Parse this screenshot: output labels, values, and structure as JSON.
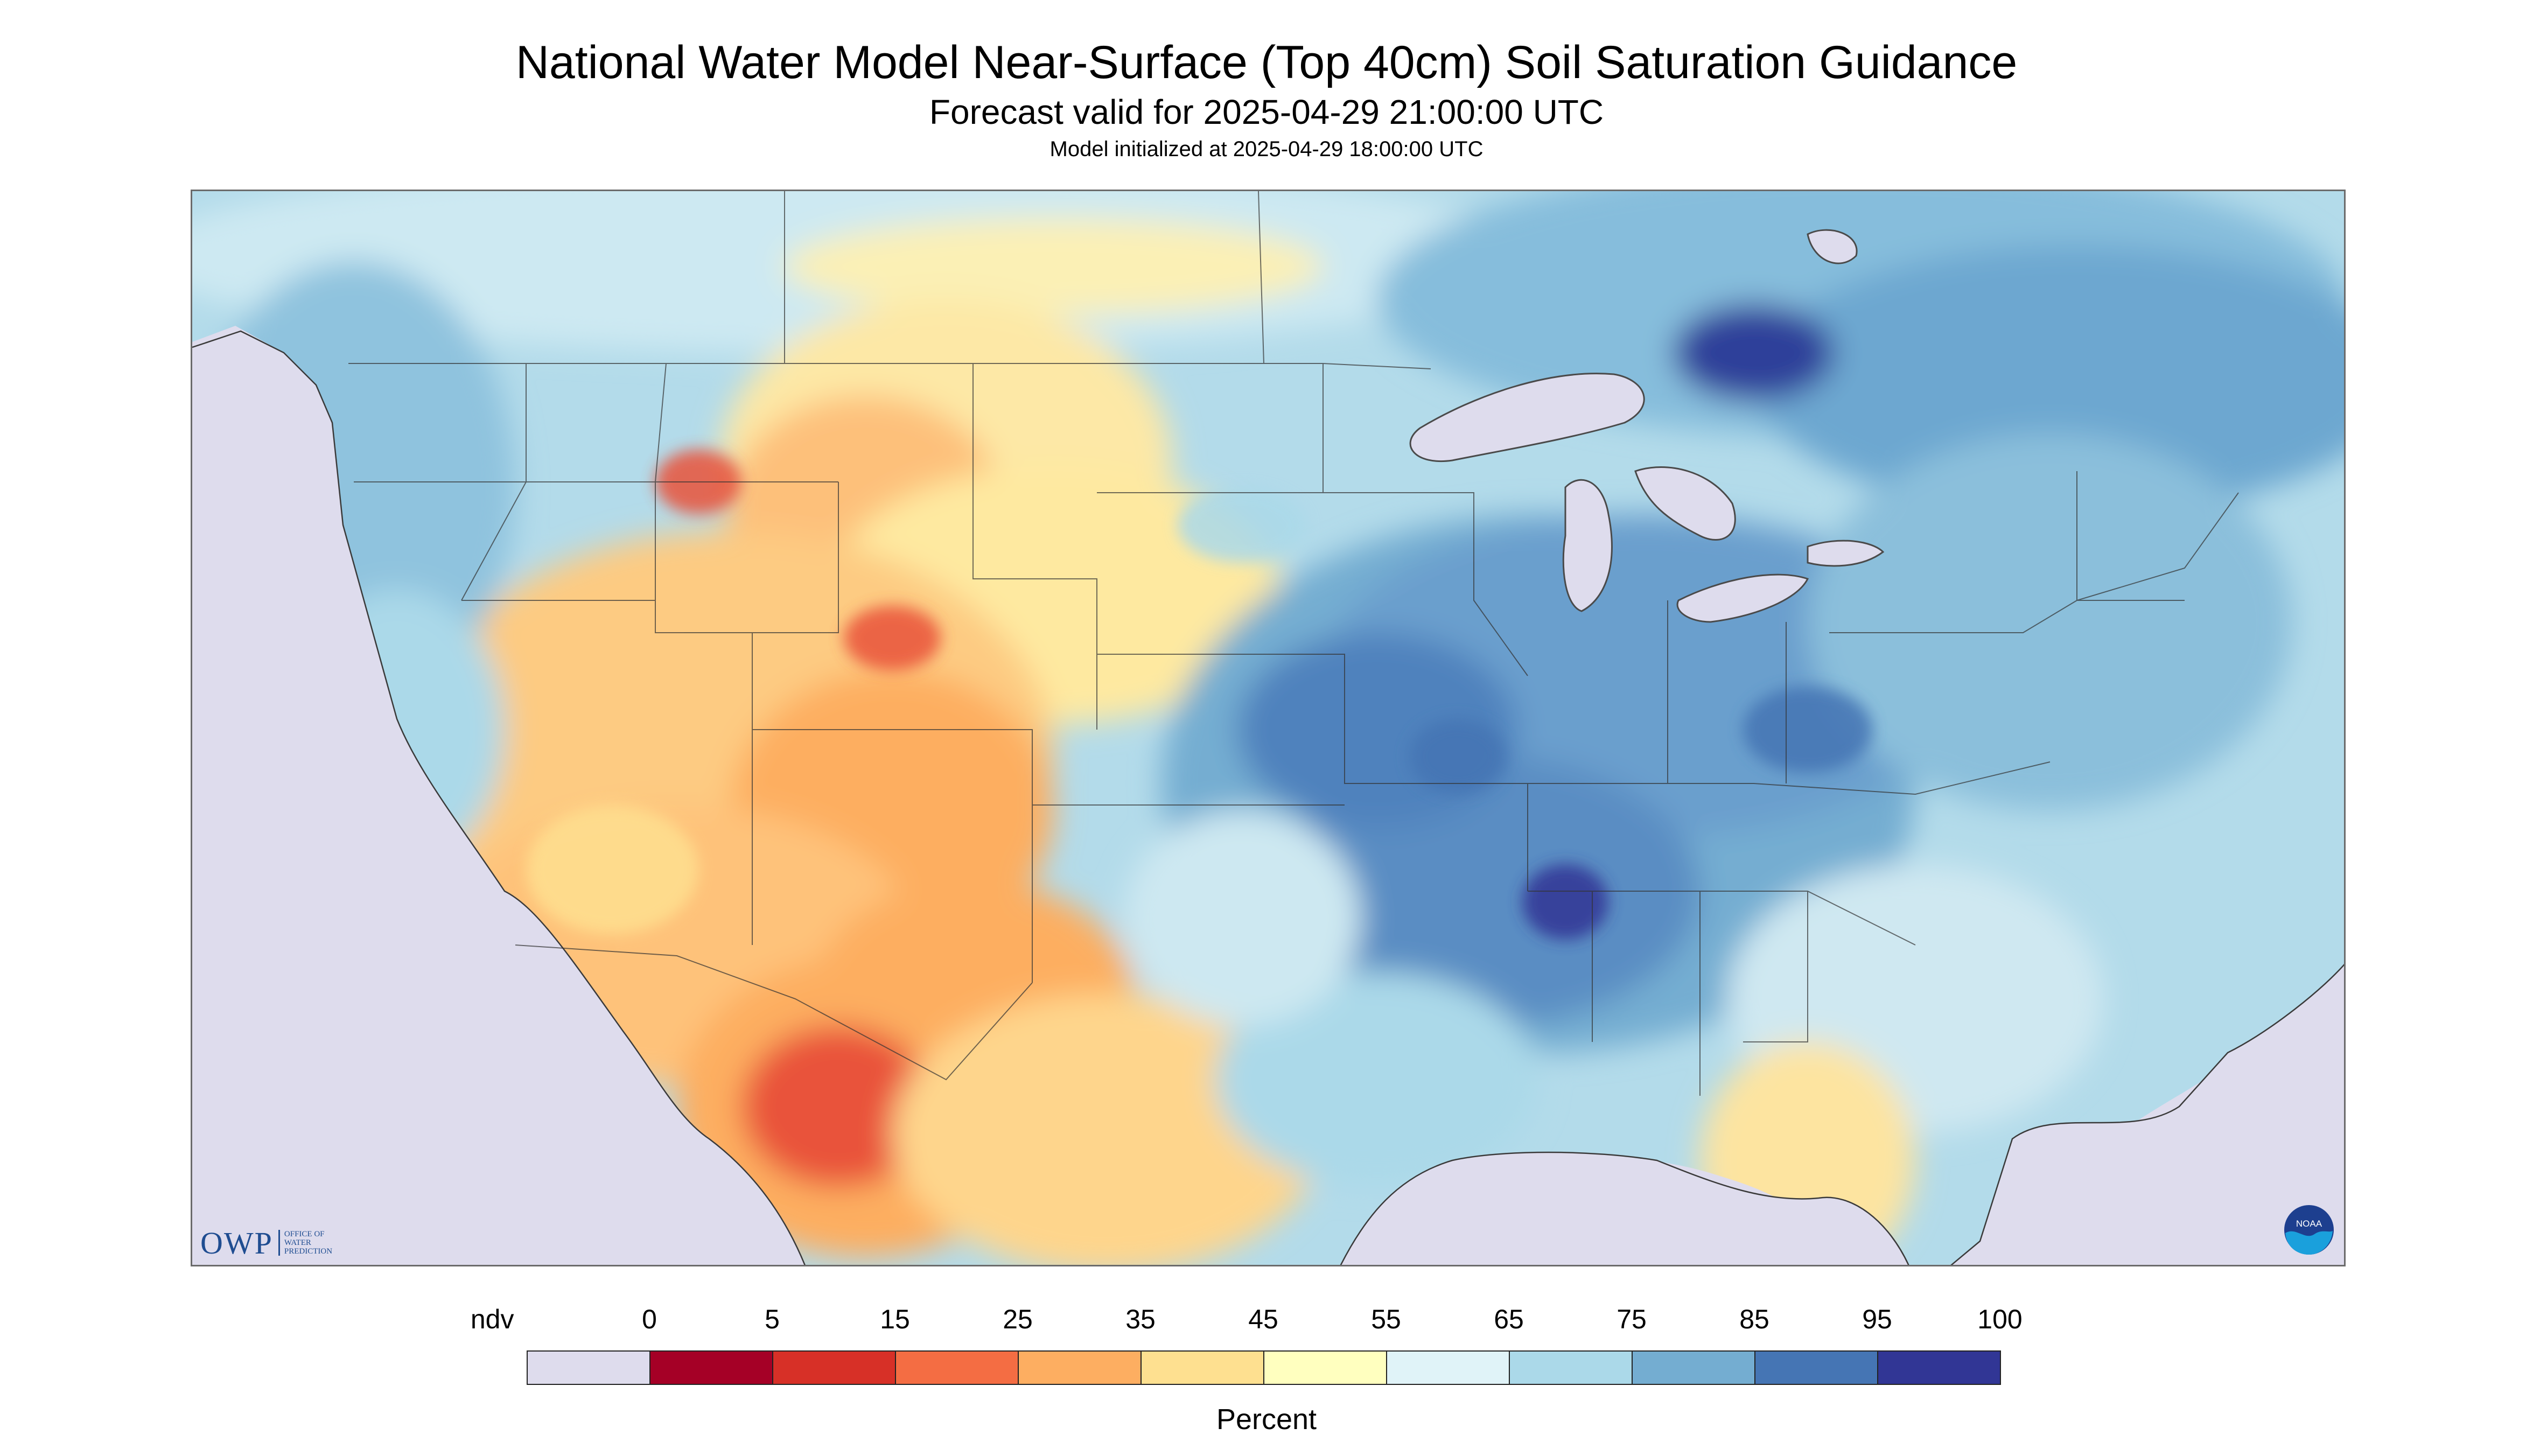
{
  "header": {
    "title": "National Water Model Near-Surface (Top 40cm) Soil Saturation Guidance",
    "subtitle": "Forecast valid for 2025-04-29 21:00:00 UTC",
    "init": "Model initialized at 2025-04-29 18:00:00 UTC"
  },
  "logos": {
    "owp": {
      "mark": "OWP",
      "text": "OFFICE OF WATER PREDICTION"
    },
    "noaa": {
      "text": "NOAA"
    }
  },
  "legend": {
    "unit": "Percent",
    "ticks": [
      "ndv",
      "0",
      "5",
      "15",
      "25",
      "35",
      "45",
      "55",
      "65",
      "75",
      "85",
      "95",
      "100"
    ],
    "bins": [
      {
        "label": "ndv",
        "color": "#dedced"
      },
      {
        "range": "0-5",
        "color": "#a50026"
      },
      {
        "range": "5-15",
        "color": "#d73027"
      },
      {
        "range": "15-25",
        "color": "#f46d43"
      },
      {
        "range": "25-35",
        "color": "#fdae61"
      },
      {
        "range": "35-45",
        "color": "#fee090"
      },
      {
        "range": "45-55",
        "color": "#ffffbf"
      },
      {
        "range": "55-65",
        "color": "#e0f3f8"
      },
      {
        "range": "65-75",
        "color": "#abd9e9"
      },
      {
        "range": "75-85",
        "color": "#74add1"
      },
      {
        "range": "85-95",
        "color": "#4575b4"
      },
      {
        "range": "95-100",
        "color": "#313695"
      }
    ]
  },
  "map": {
    "background_color": "#dedced",
    "border_color": "#3a3a3a"
  }
}
